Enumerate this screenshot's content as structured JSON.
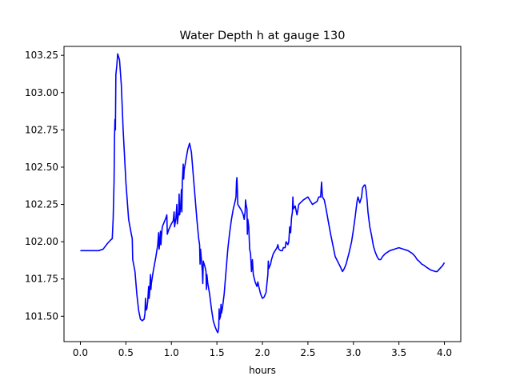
{
  "chart_data": {
    "type": "line",
    "title": "Water Depth h at gauge 130",
    "xlabel": "hours",
    "ylabel": "",
    "xlim": [
      -0.18,
      4.18
    ],
    "ylim": [
      101.33,
      103.31
    ],
    "grid": false,
    "line_color": "#0000ff",
    "x_ticks": [
      {
        "value": 0.0,
        "label": "0.0"
      },
      {
        "value": 0.5,
        "label": "0.5"
      },
      {
        "value": 1.0,
        "label": "1.0"
      },
      {
        "value": 1.5,
        "label": "1.5"
      },
      {
        "value": 2.0,
        "label": "2.0"
      },
      {
        "value": 2.5,
        "label": "2.5"
      },
      {
        "value": 3.0,
        "label": "3.0"
      },
      {
        "value": 3.5,
        "label": "3.5"
      },
      {
        "value": 4.0,
        "label": "4.0"
      }
    ],
    "y_ticks": [
      {
        "value": 101.5,
        "label": "101.50"
      },
      {
        "value": 101.75,
        "label": "101.75"
      },
      {
        "value": 102.0,
        "label": "102.00"
      },
      {
        "value": 102.25,
        "label": "102.25"
      },
      {
        "value": 102.5,
        "label": "102.50"
      },
      {
        "value": 102.75,
        "label": "102.75"
      },
      {
        "value": 103.0,
        "label": "103.00"
      },
      {
        "value": 103.25,
        "label": "103.25"
      }
    ],
    "series": [
      {
        "points": [
          [
            0.0,
            101.94
          ],
          [
            0.1,
            101.94
          ],
          [
            0.2,
            101.94
          ],
          [
            0.25,
            101.95
          ],
          [
            0.3,
            101.99
          ],
          [
            0.33,
            102.01
          ],
          [
            0.35,
            102.02
          ],
          [
            0.36,
            102.15
          ],
          [
            0.37,
            102.4
          ],
          [
            0.375,
            102.7
          ],
          [
            0.38,
            102.82
          ],
          [
            0.385,
            102.75
          ],
          [
            0.39,
            103.12
          ],
          [
            0.4,
            103.18
          ],
          [
            0.41,
            103.26
          ],
          [
            0.43,
            103.22
          ],
          [
            0.45,
            103.05
          ],
          [
            0.47,
            102.75
          ],
          [
            0.5,
            102.4
          ],
          [
            0.53,
            102.15
          ],
          [
            0.56,
            102.05
          ],
          [
            0.57,
            102.02
          ],
          [
            0.575,
            101.88
          ],
          [
            0.6,
            101.8
          ],
          [
            0.62,
            101.65
          ],
          [
            0.64,
            101.54
          ],
          [
            0.66,
            101.48
          ],
          [
            0.68,
            101.47
          ],
          [
            0.7,
            101.48
          ],
          [
            0.71,
            101.52
          ],
          [
            0.715,
            101.62
          ],
          [
            0.72,
            101.54
          ],
          [
            0.73,
            101.55
          ],
          [
            0.74,
            101.6
          ],
          [
            0.75,
            101.7
          ],
          [
            0.755,
            101.62
          ],
          [
            0.76,
            101.65
          ],
          [
            0.77,
            101.78
          ],
          [
            0.775,
            101.68
          ],
          [
            0.78,
            101.72
          ],
          [
            0.8,
            101.8
          ],
          [
            0.83,
            101.9
          ],
          [
            0.85,
            101.98
          ],
          [
            0.86,
            102.06
          ],
          [
            0.865,
            101.95
          ],
          [
            0.87,
            101.98
          ],
          [
            0.88,
            102.07
          ],
          [
            0.885,
            101.98
          ],
          [
            0.89,
            102.03
          ],
          [
            0.9,
            102.1
          ],
          [
            0.92,
            102.13
          ],
          [
            0.94,
            102.16
          ],
          [
            0.95,
            102.18
          ],
          [
            0.955,
            102.05
          ],
          [
            0.97,
            102.08
          ],
          [
            1.0,
            102.12
          ],
          [
            1.02,
            102.14
          ],
          [
            1.03,
            102.2
          ],
          [
            1.035,
            102.1
          ],
          [
            1.05,
            102.16
          ],
          [
            1.06,
            102.25
          ],
          [
            1.065,
            102.12
          ],
          [
            1.08,
            102.2
          ],
          [
            1.085,
            102.32
          ],
          [
            1.09,
            102.18
          ],
          [
            1.1,
            102.22
          ],
          [
            1.11,
            102.35
          ],
          [
            1.115,
            102.2
          ],
          [
            1.12,
            102.4
          ],
          [
            1.13,
            102.52
          ],
          [
            1.135,
            102.42
          ],
          [
            1.14,
            102.48
          ],
          [
            1.16,
            102.55
          ],
          [
            1.18,
            102.62
          ],
          [
            1.2,
            102.66
          ],
          [
            1.22,
            102.6
          ],
          [
            1.24,
            102.45
          ],
          [
            1.26,
            102.3
          ],
          [
            1.28,
            102.15
          ],
          [
            1.3,
            102.02
          ],
          [
            1.31,
            101.98
          ],
          [
            1.315,
            101.85
          ],
          [
            1.32,
            101.95
          ],
          [
            1.33,
            101.88
          ],
          [
            1.34,
            101.8
          ],
          [
            1.345,
            101.72
          ],
          [
            1.35,
            101.87
          ],
          [
            1.37,
            101.83
          ],
          [
            1.38,
            101.8
          ],
          [
            1.385,
            101.68
          ],
          [
            1.39,
            101.78
          ],
          [
            1.4,
            101.72
          ],
          [
            1.42,
            101.65
          ],
          [
            1.44,
            101.55
          ],
          [
            1.46,
            101.47
          ],
          [
            1.48,
            101.43
          ],
          [
            1.5,
            101.4
          ],
          [
            1.51,
            101.39
          ],
          [
            1.52,
            101.42
          ],
          [
            1.525,
            101.55
          ],
          [
            1.53,
            101.48
          ],
          [
            1.54,
            101.5
          ],
          [
            1.545,
            101.58
          ],
          [
            1.55,
            101.52
          ],
          [
            1.56,
            101.55
          ],
          [
            1.58,
            101.65
          ],
          [
            1.6,
            101.8
          ],
          [
            1.62,
            101.95
          ],
          [
            1.64,
            102.06
          ],
          [
            1.66,
            102.15
          ],
          [
            1.68,
            102.22
          ],
          [
            1.7,
            102.27
          ],
          [
            1.71,
            102.3
          ],
          [
            1.715,
            102.4
          ],
          [
            1.72,
            102.43
          ],
          [
            1.725,
            102.35
          ],
          [
            1.73,
            102.25
          ],
          [
            1.75,
            102.23
          ],
          [
            1.77,
            102.21
          ],
          [
            1.79,
            102.18
          ],
          [
            1.8,
            102.15
          ],
          [
            1.81,
            102.2
          ],
          [
            1.815,
            102.28
          ],
          [
            1.82,
            102.25
          ],
          [
            1.83,
            102.22
          ],
          [
            1.835,
            102.05
          ],
          [
            1.84,
            102.15
          ],
          [
            1.85,
            102.1
          ],
          [
            1.86,
            101.95
          ],
          [
            1.87,
            101.92
          ],
          [
            1.88,
            101.8
          ],
          [
            1.89,
            101.88
          ],
          [
            1.9,
            101.78
          ],
          [
            1.92,
            101.73
          ],
          [
            1.94,
            101.7
          ],
          [
            1.95,
            101.73
          ],
          [
            1.96,
            101.7
          ],
          [
            1.98,
            101.65
          ],
          [
            2.0,
            101.62
          ],
          [
            2.02,
            101.63
          ],
          [
            2.04,
            101.66
          ],
          [
            2.05,
            101.72
          ],
          [
            2.06,
            101.78
          ],
          [
            2.065,
            101.87
          ],
          [
            2.07,
            101.82
          ],
          [
            2.09,
            101.85
          ],
          [
            2.1,
            101.88
          ],
          [
            2.12,
            101.92
          ],
          [
            2.14,
            101.94
          ],
          [
            2.16,
            101.96
          ],
          [
            2.17,
            101.98
          ],
          [
            2.18,
            101.95
          ],
          [
            2.2,
            101.94
          ],
          [
            2.22,
            101.94
          ],
          [
            2.23,
            101.96
          ],
          [
            2.25,
            101.96
          ],
          [
            2.26,
            102.0
          ],
          [
            2.28,
            101.98
          ],
          [
            2.29,
            102.0
          ],
          [
            2.3,
            102.1
          ],
          [
            2.31,
            102.06
          ],
          [
            2.32,
            102.16
          ],
          [
            2.33,
            102.2
          ],
          [
            2.335,
            102.3
          ],
          [
            2.34,
            102.22
          ],
          [
            2.36,
            102.24
          ],
          [
            2.38,
            102.18
          ],
          [
            2.4,
            102.25
          ],
          [
            2.45,
            102.28
          ],
          [
            2.5,
            102.3
          ],
          [
            2.55,
            102.25
          ],
          [
            2.6,
            102.27
          ],
          [
            2.62,
            102.3
          ],
          [
            2.64,
            102.3
          ],
          [
            2.65,
            102.4
          ],
          [
            2.66,
            102.3
          ],
          [
            2.68,
            102.28
          ],
          [
            2.7,
            102.22
          ],
          [
            2.72,
            102.15
          ],
          [
            2.75,
            102.05
          ],
          [
            2.78,
            101.96
          ],
          [
            2.8,
            101.9
          ],
          [
            2.85,
            101.84
          ],
          [
            2.88,
            101.8
          ],
          [
            2.9,
            101.82
          ],
          [
            2.92,
            101.85
          ],
          [
            2.95,
            101.92
          ],
          [
            2.98,
            102.0
          ],
          [
            3.0,
            102.08
          ],
          [
            3.02,
            102.17
          ],
          [
            3.03,
            102.22
          ],
          [
            3.04,
            102.27
          ],
          [
            3.05,
            102.3
          ],
          [
            3.06,
            102.28
          ],
          [
            3.07,
            102.26
          ],
          [
            3.08,
            102.28
          ],
          [
            3.09,
            102.3
          ],
          [
            3.1,
            102.36
          ],
          [
            3.12,
            102.38
          ],
          [
            3.13,
            102.38
          ],
          [
            3.14,
            102.34
          ],
          [
            3.15,
            102.28
          ],
          [
            3.16,
            102.2
          ],
          [
            3.17,
            102.15
          ],
          [
            3.18,
            102.1
          ],
          [
            3.2,
            102.04
          ],
          [
            3.22,
            101.97
          ],
          [
            3.24,
            101.93
          ],
          [
            3.26,
            101.9
          ],
          [
            3.28,
            101.88
          ],
          [
            3.3,
            101.88
          ],
          [
            3.32,
            101.9
          ],
          [
            3.35,
            101.92
          ],
          [
            3.4,
            101.94
          ],
          [
            3.45,
            101.95
          ],
          [
            3.5,
            101.96
          ],
          [
            3.55,
            101.95
          ],
          [
            3.6,
            101.94
          ],
          [
            3.65,
            101.92
          ],
          [
            3.68,
            101.9
          ],
          [
            3.7,
            101.88
          ],
          [
            3.72,
            101.87
          ],
          [
            3.75,
            101.85
          ],
          [
            3.78,
            101.84
          ],
          [
            3.8,
            101.83
          ],
          [
            3.85,
            101.81
          ],
          [
            3.9,
            101.8
          ],
          [
            3.92,
            101.8
          ],
          [
            3.95,
            101.82
          ],
          [
            3.98,
            101.84
          ],
          [
            4.0,
            101.86
          ]
        ]
      }
    ]
  }
}
